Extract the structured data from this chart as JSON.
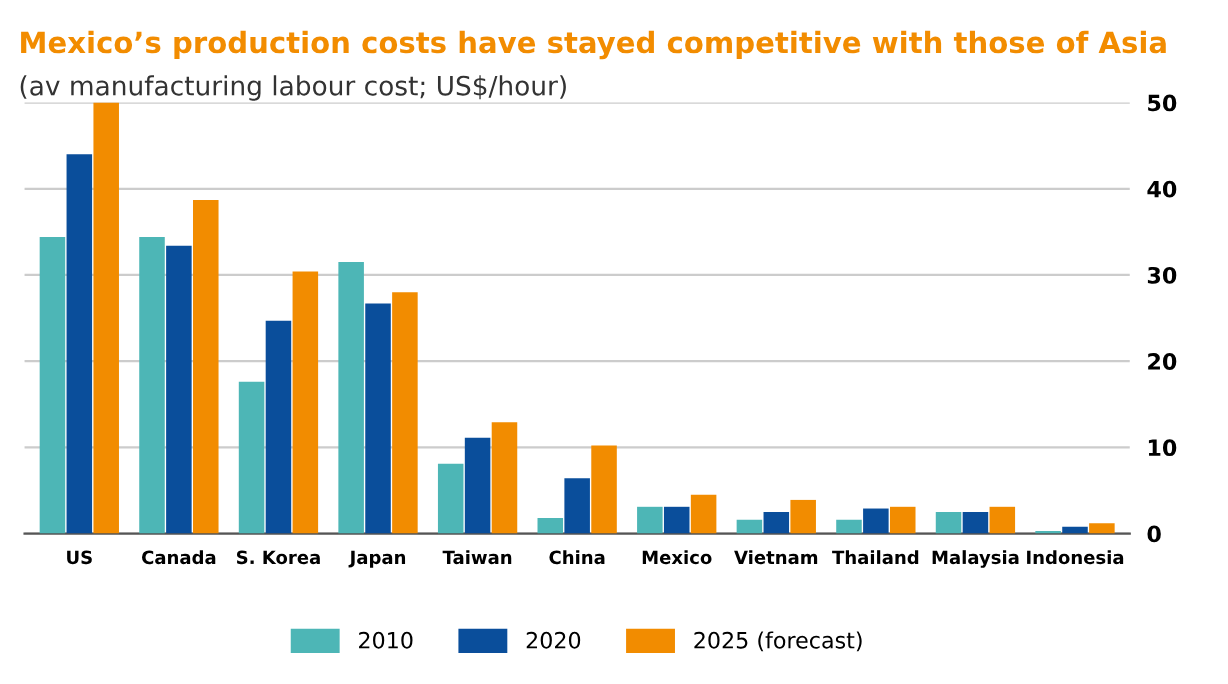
{
  "chart_data": {
    "type": "bar",
    "title": "Mexico’s production costs have stayed competitive with those of Asia",
    "subtitle": "(av manufacturing labour cost; US$/hour)",
    "categories": [
      "US",
      "Canada",
      "S. Korea",
      "Japan",
      "Taiwan",
      "China",
      "Mexico",
      "Vietnam",
      "Thailand",
      "Malaysia",
      "Indonesia"
    ],
    "series": [
      {
        "name": "2010",
        "color": "#4db6b6",
        "values": [
          34.4,
          34.4,
          17.6,
          31.5,
          8.1,
          1.8,
          3.1,
          1.6,
          1.6,
          2.5,
          0.3
        ]
      },
      {
        "name": "2020",
        "color": "#0a4e9b",
        "values": [
          44.0,
          33.4,
          24.7,
          26.7,
          11.1,
          6.4,
          3.1,
          2.5,
          2.9,
          2.5,
          0.8
        ]
      },
      {
        "name": "2025 (forecast)",
        "color": "#f28c00",
        "values": [
          50,
          38.7,
          30.4,
          28.0,
          12.9,
          10.2,
          4.5,
          3.9,
          3.1,
          3.1,
          1.2
        ]
      }
    ],
    "ylim": [
      0,
      50
    ],
    "yticks": [
      0,
      10,
      20,
      30,
      40,
      50
    ],
    "grid": "y",
    "legend": "bottom"
  }
}
